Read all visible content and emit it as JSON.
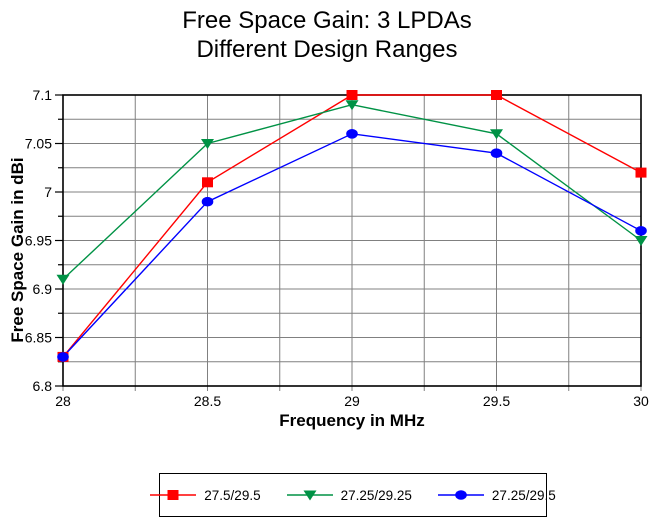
{
  "title": {
    "line1": "Free Space Gain: 3 LPDAs",
    "line2": "Different Design Ranges"
  },
  "chart_data": {
    "type": "line",
    "x": [
      28,
      28.5,
      29,
      29.5,
      30
    ],
    "series": [
      {
        "name": "27.5/29.5",
        "color": "#ff0000",
        "marker": "square",
        "values": [
          6.83,
          7.01,
          7.1,
          7.1,
          7.02
        ]
      },
      {
        "name": "27.25/29.25",
        "color": "#009245",
        "marker": "triangle-down",
        "values": [
          6.91,
          7.05,
          7.09,
          7.06,
          6.95
        ]
      },
      {
        "name": "27.25/29.5",
        "color": "#0000ff",
        "marker": "circle",
        "values": [
          6.83,
          6.99,
          7.06,
          7.04,
          6.96
        ]
      }
    ],
    "xlabel": "Frequency in MHz",
    "ylabel": "Free Space Gain in dBi",
    "xlim": [
      28,
      30
    ],
    "ylim": [
      6.8,
      7.1
    ],
    "x_minor_step": 0.25,
    "x_major_step": 0.5,
    "y_minor_step": 0.025,
    "y_major_step": 0.05,
    "x_tick_labels": [
      "28",
      "28.5",
      "29",
      "29.5",
      "30"
    ],
    "y_tick_labels": [
      "7.1",
      "7.05",
      "7",
      "6.95",
      "6.9",
      "6.85",
      "6.8"
    ],
    "grid": true,
    "legend_position": "bottom",
    "colors": {
      "grid": "#808080",
      "axis": "#000000",
      "background": "#ffffff",
      "text": "#000000"
    }
  }
}
